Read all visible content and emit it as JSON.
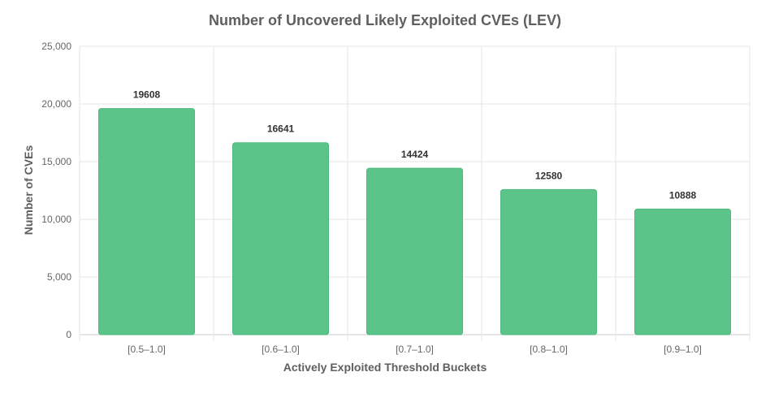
{
  "chart_data": {
    "type": "bar",
    "title": "Number of Uncovered Likely Exploited CVEs (LEV)",
    "xlabel": "Actively Exploited Threshold Buckets",
    "ylabel": "Number of CVEs",
    "categories": [
      "[0.5–1.0]",
      "[0.6–1.0]",
      "[0.7–1.0]",
      "[0.8–1.0]",
      "[0.9–1.0]"
    ],
    "values": [
      19608,
      16641,
      14424,
      12580,
      10888
    ],
    "data_labels": [
      "19608",
      "16641",
      "14424",
      "12580",
      "10888"
    ],
    "ylim": [
      0,
      25000
    ],
    "yticks": [
      0,
      5000,
      10000,
      15000,
      20000,
      25000
    ],
    "ytick_labels": [
      "0",
      "5,000",
      "10,000",
      "15,000",
      "20,000",
      "25,000"
    ],
    "grid": true,
    "legend": "none",
    "bar_color": "#5bc489",
    "bar_stroke": "#4fb87d"
  }
}
